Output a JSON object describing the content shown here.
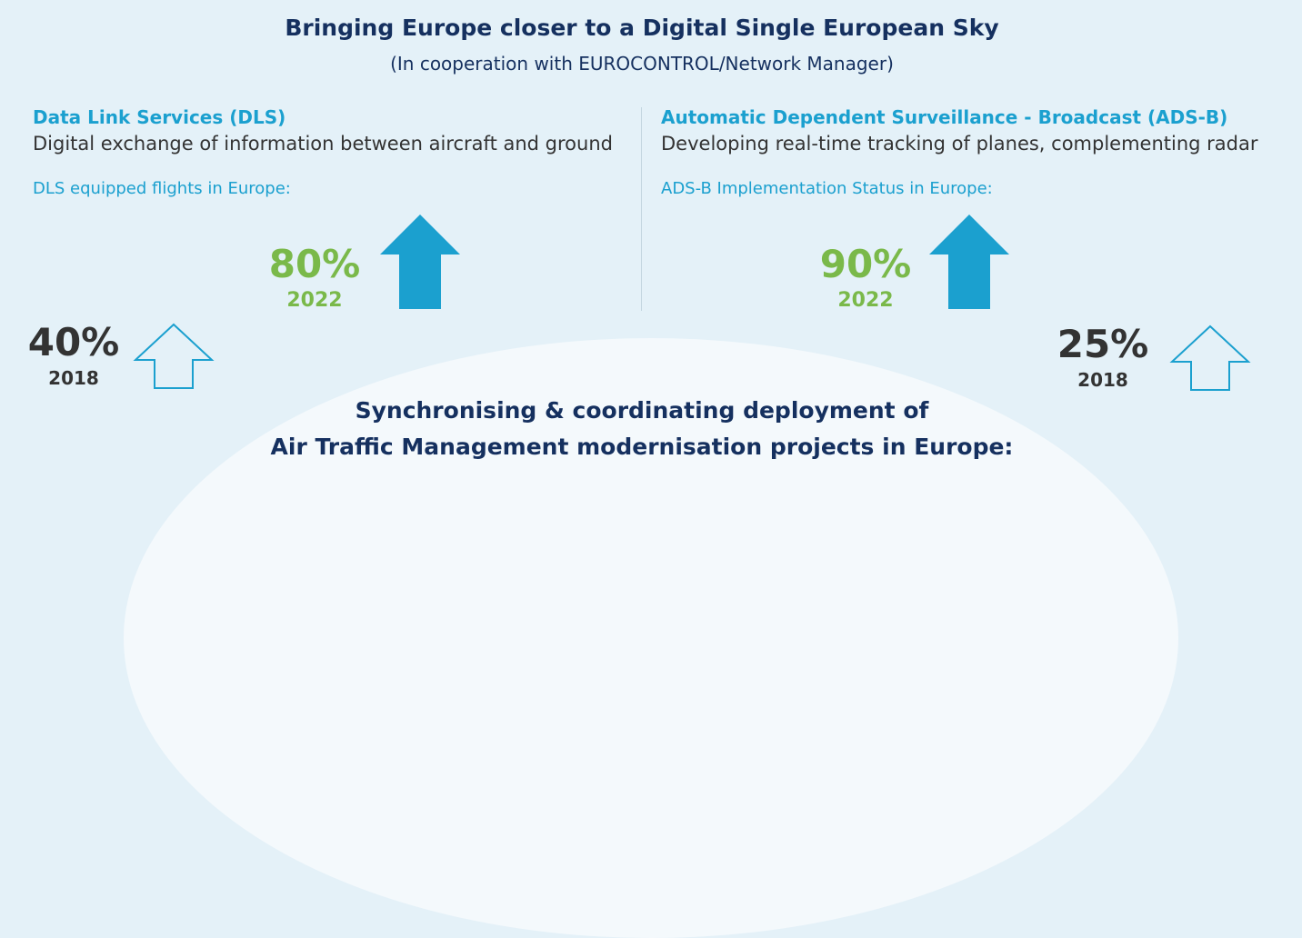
{
  "header": {
    "title": "Bringing Europe closer to a Digital Single European Sky",
    "subtitle": "(In cooperation with EUROCONTROL/Network Manager)"
  },
  "dls": {
    "heading": "Data Link Services (DLS)",
    "description": "Digital exchange of information between aircraft and ground",
    "metric_label": "DLS equipped flights in Europe:",
    "current": {
      "value": "80%",
      "year": "2022"
    },
    "previous": {
      "value": "40%",
      "year": "2018"
    }
  },
  "adsb": {
    "heading": "Automatic Dependent Surveillance - Broadcast (ADS-B)",
    "description": "Developing real-time tracking of planes, complementing radar",
    "metric_label": "ADS-B Implementation Status in Europe:",
    "current": {
      "value": "90%",
      "year": "2022"
    },
    "previous": {
      "value": "25%",
      "year": "2018"
    }
  },
  "footer": {
    "line1": "Synchronising & coordinating deployment of",
    "line2": "Air Traffic Management modernisation projects in Europe:"
  },
  "colors": {
    "navy": "#15305f",
    "cyan": "#1ba0cf",
    "green": "#7ab94a",
    "background": "#e4f1f8"
  },
  "icons": {
    "filled_arrow": "arrow-up-filled-icon",
    "outline_arrow": "arrow-up-outline-icon"
  }
}
